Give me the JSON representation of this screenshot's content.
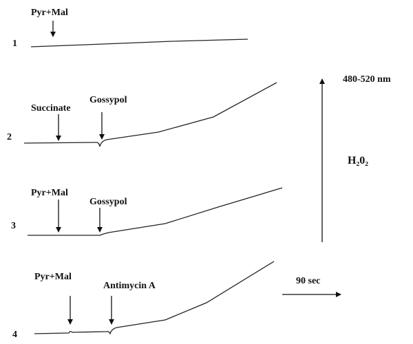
{
  "traces": [
    {
      "label": "1",
      "annotations": [
        "Pyr+Mal"
      ]
    },
    {
      "label": "2",
      "annotations": [
        "Succinate",
        "Gossypol"
      ]
    },
    {
      "label": "3",
      "annotations": [
        "Pyr+Mal",
        "Gossypol"
      ]
    },
    {
      "label": "4",
      "annotations": [
        "Pyr+Mal",
        "Antimycin A"
      ]
    }
  ],
  "scale": {
    "wavelength": "480-520 nm",
    "species": "H₂0₂",
    "time": "90 sec"
  }
}
